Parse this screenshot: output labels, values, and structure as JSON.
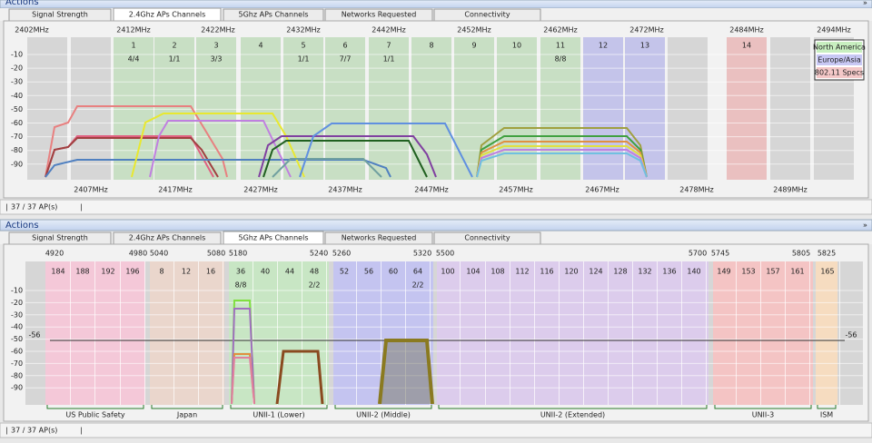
{
  "panels": [
    {
      "header": "Actions",
      "tabs": [
        "Signal Strength",
        "2.4Ghz APs Channels",
        "5Ghz APs Channels",
        "Networks Requested",
        "Connectivity"
      ],
      "active_tab": 1,
      "frequencies_top": [
        "2402MHz",
        "2412MHz",
        "2422MHz",
        "2432MHz",
        "2442MHz",
        "2452MHz",
        "2462MHz",
        "2472MHz",
        "2484MHz",
        "2494MHz"
      ],
      "frequencies_bottom": [
        "2407MHz",
        "2417MHz",
        "2427MHz",
        "2437MHz",
        "2447MHz",
        "2457MHz",
        "2467MHz",
        "2478MHz",
        "2489MHz"
      ],
      "channels": [
        {
          "label": "1",
          "aps": "4/4"
        },
        {
          "label": "2",
          "aps": "1/1"
        },
        {
          "label": "3",
          "aps": "3/3"
        },
        {
          "label": "4"
        },
        {
          "label": "5",
          "aps": "1/1"
        },
        {
          "label": "6",
          "aps": "7/7"
        },
        {
          "label": "7",
          "aps": "1/1"
        },
        {
          "label": "8"
        },
        {
          "label": "9"
        },
        {
          "label": "10"
        },
        {
          "label": "11",
          "aps": "8/8"
        },
        {
          "label": "12"
        },
        {
          "label": "13"
        },
        {
          "label": "14"
        }
      ],
      "yticks": [
        "-10",
        "-20",
        "-30",
        "-40",
        "-50",
        "-60",
        "-70",
        "-80",
        "-90"
      ],
      "legend": [
        "North America",
        "Europe/Asia",
        "802.11 Specs"
      ],
      "status": "37 / 37 AP(s)"
    },
    {
      "header": "Actions",
      "tabs": [
        "Signal Strength",
        "2.4Ghz APs Channels",
        "5Ghz APs Channels",
        "Networks Requested",
        "Connectivity"
      ],
      "active_tab": 2,
      "frequencies_top": [
        "4920",
        "4980",
        "5040",
        "5080",
        "5180",
        "5240",
        "5260",
        "5320",
        "5500",
        "5700",
        "5745",
        "5805",
        "5825"
      ],
      "channels": [
        {
          "label": "184"
        },
        {
          "label": "188"
        },
        {
          "label": "192"
        },
        {
          "label": "196"
        },
        {
          "label": "8"
        },
        {
          "label": "12"
        },
        {
          "label": "16"
        },
        {
          "label": "36",
          "aps": "8/8"
        },
        {
          "label": "40"
        },
        {
          "label": "44"
        },
        {
          "label": "48",
          "aps": "2/2"
        },
        {
          "label": "52"
        },
        {
          "label": "56"
        },
        {
          "label": "60"
        },
        {
          "label": "64",
          "aps": "2/2"
        },
        {
          "label": "100"
        },
        {
          "label": "104"
        },
        {
          "label": "108"
        },
        {
          "label": "112"
        },
        {
          "label": "116"
        },
        {
          "label": "120"
        },
        {
          "label": "124"
        },
        {
          "label": "128"
        },
        {
          "label": "132"
        },
        {
          "label": "136"
        },
        {
          "label": "140"
        },
        {
          "label": "149"
        },
        {
          "label": "153"
        },
        {
          "label": "157"
        },
        {
          "label": "161"
        },
        {
          "label": "165"
        }
      ],
      "yticks": [
        "-10",
        "-20",
        "-30",
        "-40",
        "-50",
        "-60",
        "-70",
        "-80",
        "-90"
      ],
      "threshold": "-56",
      "groups": [
        "US Public Safety",
        "Japan",
        "UNII-1 (Lower)",
        "UNII-2 (Middle)",
        "UNII-2 (Extended)",
        "UNII-3",
        "ISM"
      ],
      "status": "37 / 37 AP(s)"
    }
  ]
}
